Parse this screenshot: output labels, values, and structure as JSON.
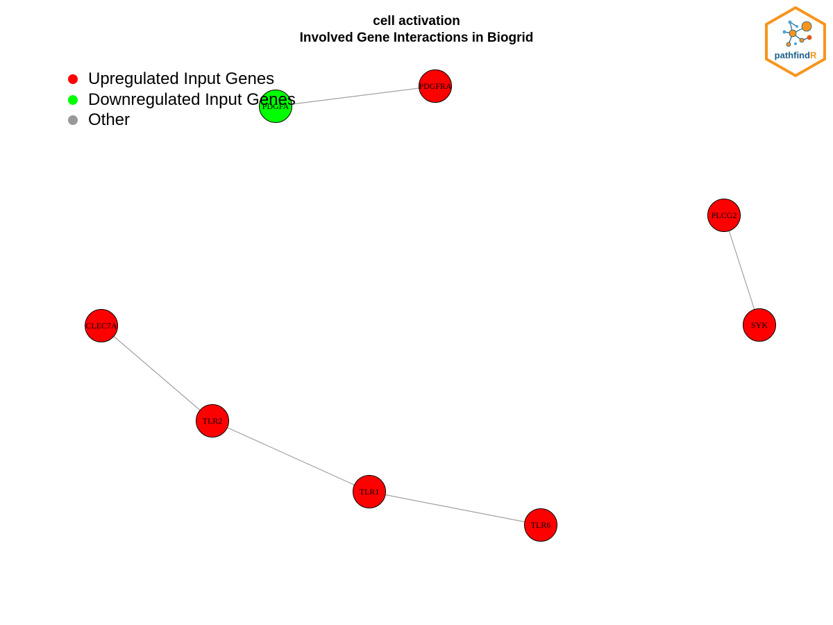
{
  "title": {
    "line1": "cell activation",
    "line2": "Involved Gene Interactions in Biogrid"
  },
  "legend": [
    {
      "label": "Upregulated Input Genes",
      "color": "#ff0000"
    },
    {
      "label": "Downregulated Input Genes",
      "color": "#00ff00"
    },
    {
      "label": "Other",
      "color": "#999999"
    }
  ],
  "logo": {
    "text_main": "pathfind",
    "text_accent": "R",
    "border_color": "#f7941d",
    "text_color": "#1a5e8a"
  },
  "network": {
    "nodes": [
      {
        "id": "PDGFRA",
        "label": "PDGFRA",
        "status": "up"
      },
      {
        "id": "PDGFA",
        "label": "PDGFA",
        "status": "down"
      },
      {
        "id": "PLCG2",
        "label": "PLCG2",
        "status": "up"
      },
      {
        "id": "SYK",
        "label": "SYK",
        "status": "up"
      },
      {
        "id": "CLEC7A",
        "label": "CLEC7A",
        "status": "up"
      },
      {
        "id": "TLR2",
        "label": "TLR2",
        "status": "up"
      },
      {
        "id": "TLR1",
        "label": "TLR1",
        "status": "up"
      },
      {
        "id": "TLR6",
        "label": "TLR6",
        "status": "up"
      }
    ],
    "edges": [
      {
        "from": "PDGFA",
        "to": "PDGFRA"
      },
      {
        "from": "PLCG2",
        "to": "SYK"
      },
      {
        "from": "CLEC7A",
        "to": "TLR2"
      },
      {
        "from": "TLR2",
        "to": "TLR1"
      },
      {
        "from": "TLR1",
        "to": "TLR6"
      }
    ],
    "colors": {
      "up": "#ff0000",
      "down": "#00ff00",
      "edge": "#a0a0a0"
    }
  }
}
